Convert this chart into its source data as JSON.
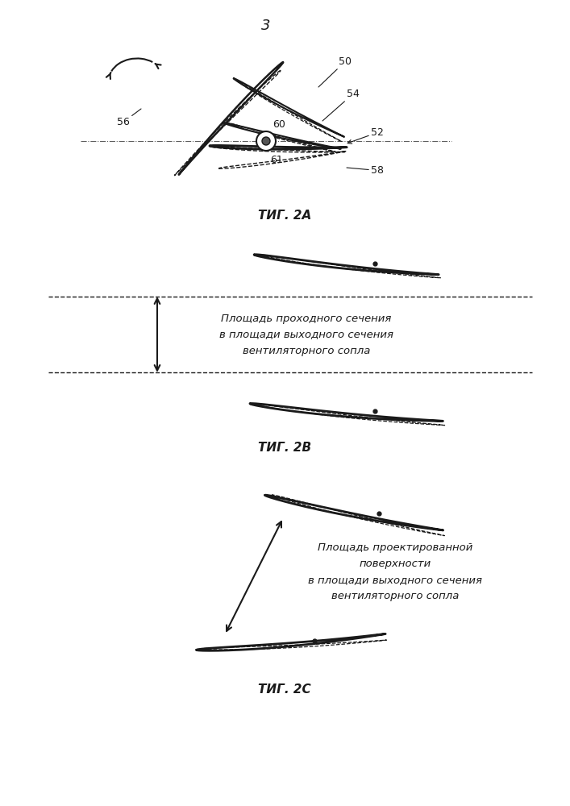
{
  "page_number": "3",
  "fig2a_label": "ΤИГ. 2A",
  "fig2b_label": "ΤИГ. 2B",
  "fig2c_label": "ΤИГ. 2C",
  "fig2b_text": "Площадь проходного сечения\nв площади выходного сечения\nвентиляторного сопла",
  "fig2c_text": "Площадь проектированной\nповерхности\nв площади выходного сечения\nвентиляторного сопла",
  "background": "#ffffff",
  "line_color": "#1a1a1a"
}
